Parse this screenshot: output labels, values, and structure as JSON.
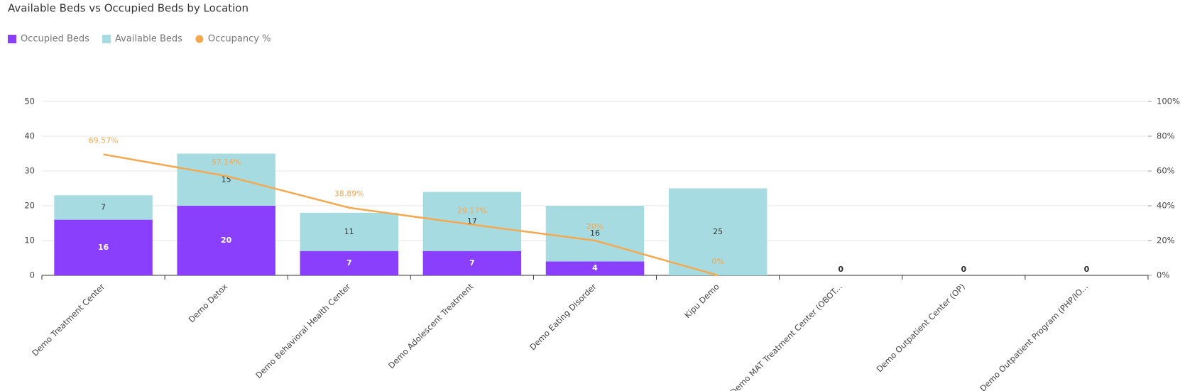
{
  "chart_data": {
    "type": "bar",
    "stacked": true,
    "title": "Available Beds vs Occupied Beds by Location",
    "categories": [
      "Demo Treatment Center",
      "Demo Detox",
      "Demo Behavioral Health Center",
      "Demo Adolescent Treatment",
      "Demo Eating Disorder",
      "Kipu Demo",
      "Demo MAT Treatment Center (OBOT...",
      "Demo Outpatient Center (OP)",
      "Demo Outpatient Program (PHP/IO..."
    ],
    "series": [
      {
        "name": "Occupied Beds",
        "type": "bar",
        "color": "#8a3ffc",
        "values": [
          16,
          20,
          7,
          7,
          4,
          0,
          0,
          0,
          0
        ]
      },
      {
        "name": "Available Beds",
        "type": "bar",
        "color": "#a6dbe1",
        "values": [
          7,
          15,
          11,
          17,
          16,
          25,
          0,
          0,
          0
        ]
      },
      {
        "name": "Occupancy %",
        "type": "line",
        "axis": "y2",
        "color": "#f4a950",
        "values": [
          69.57,
          57.14,
          38.89,
          29.17,
          20,
          0,
          null,
          null,
          null
        ],
        "value_labels": [
          "69.57%",
          "57.14%",
          "38.89%",
          "29.17%",
          "20%",
          "0%",
          null,
          null,
          null
        ]
      }
    ],
    "ylim": [
      0,
      50
    ],
    "yticks": [
      0,
      10,
      20,
      30,
      40,
      50
    ],
    "y2lim": [
      0,
      100
    ],
    "y2ticks": [
      {
        "value": 0,
        "label": "0%"
      },
      {
        "value": 20,
        "label": "20%"
      },
      {
        "value": 40,
        "label": "40%"
      },
      {
        "value": 60,
        "label": "60%"
      },
      {
        "value": 80,
        "label": "80%"
      },
      {
        "value": 100,
        "label": "100%"
      }
    ],
    "grid": true,
    "legend": "top-left"
  }
}
